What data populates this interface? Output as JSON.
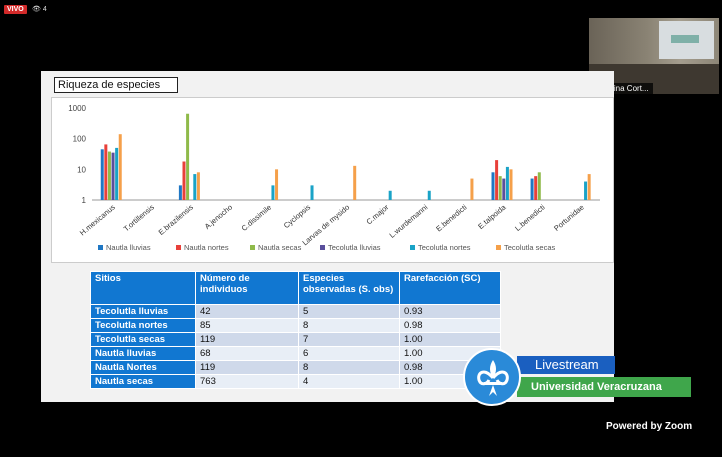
{
  "header": {
    "live_label": "VIVO",
    "viewer_count": "4",
    "viewer_icon": "eye-icon"
  },
  "participant": {
    "name": "Albertina Cort..."
  },
  "slide": {
    "title": "Riqueza de especies",
    "table": {
      "headers": [
        "Sitios",
        "Número de individuos",
        "Especies observadas (S. obs)",
        "Rarefacción (SC)"
      ],
      "rows": [
        [
          "Tecolutla lluvias",
          "42",
          "5",
          "0.93"
        ],
        [
          "Tecolutla nortes",
          "85",
          "8",
          "0.98"
        ],
        [
          "Tecolutla secas",
          "119",
          "7",
          "1.00"
        ],
        [
          "Nautla lluvias",
          "68",
          "6",
          "1.00"
        ],
        [
          "Nautla Nortes",
          "119",
          "8",
          "0.98"
        ],
        [
          "Nautla secas",
          "763",
          "4",
          "1.00"
        ]
      ]
    }
  },
  "chart_data": {
    "type": "bar",
    "yscale": "log",
    "ylim": [
      1,
      1000
    ],
    "yticks": [
      "1",
      "10",
      "100",
      "1000"
    ],
    "categories": [
      "H.mexicanus",
      "T.ortillensis",
      "E.brazilensis",
      "A.jenocho",
      "C.dissimile",
      "Cyclopsis",
      "Larvas de mysido",
      "C.major",
      "L.wurdemanni",
      "E.benedicti",
      "E.talpoida",
      "L.benedicti",
      "Portunidae"
    ],
    "series": [
      {
        "name": "Nautla lluvias",
        "color": "#1f77c4",
        "values": [
          45,
          0,
          3,
          0,
          0,
          0,
          0,
          0,
          0,
          0,
          8,
          5,
          0
        ]
      },
      {
        "name": "Nautla nortes",
        "color": "#e8403a",
        "values": [
          65,
          0,
          18,
          0,
          0,
          0,
          0,
          0,
          0,
          0,
          20,
          6,
          0
        ]
      },
      {
        "name": "Nautla secas",
        "color": "#8fba4a",
        "values": [
          38,
          0,
          650,
          0,
          0,
          0,
          0,
          0,
          0,
          0,
          6,
          8,
          0
        ]
      },
      {
        "name": "Tecolutla lluvias",
        "color": "#5a4f9c",
        "values": [
          35,
          0,
          0,
          0,
          0,
          0,
          0,
          0,
          0,
          0,
          5,
          0,
          0
        ]
      },
      {
        "name": "Tecolutla nortes",
        "color": "#1aa3c7",
        "values": [
          50,
          0,
          7,
          0,
          3,
          3,
          0,
          2,
          2,
          0,
          12,
          0,
          4
        ]
      },
      {
        "name": "Tecolutla secas",
        "color": "#f5a04a",
        "values": [
          140,
          0,
          8,
          0,
          10,
          0,
          13,
          0,
          0,
          5,
          10,
          0,
          7
        ]
      }
    ]
  },
  "banner": {
    "livestream": "Livestream",
    "university": "Universidad Veracruzana"
  },
  "footer": {
    "powered_by": "Powered by Zoom"
  }
}
